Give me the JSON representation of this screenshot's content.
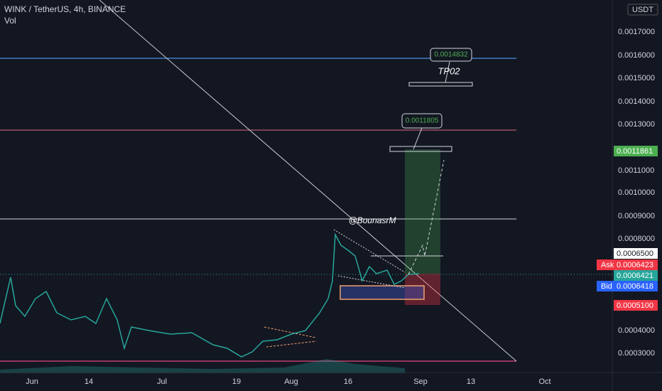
{
  "header": {
    "symbol": "WINK / TetherUS, 4h, BINANCE",
    "volume": "Vol",
    "currency": "USDT"
  },
  "price_axis": [
    "0.0017000",
    "0.0016000",
    "0.0015000",
    "0.0014000",
    "0.0013000",
    "0.0011000",
    "0.0010000",
    "0.0009000",
    "0.0008000",
    "0.0004000",
    "0.0003000"
  ],
  "time_axis": [
    "Jun",
    "14",
    "Jul",
    "19",
    "Aug",
    "16",
    "Sep",
    "13",
    "Oct"
  ],
  "price_tags": {
    "target": "0.0011861",
    "level": "0.0006500",
    "ask_label": "Ask",
    "ask": "0.0006423",
    "last": "0.0006421",
    "bid_label": "Bid",
    "bid": "0.0006418",
    "stop": "0.0005100"
  },
  "annotations": {
    "tp2_price": "0.0014832",
    "tp2_label": "TP02",
    "tp1_price": "0.0011805",
    "author": "@BounasrM"
  }
}
